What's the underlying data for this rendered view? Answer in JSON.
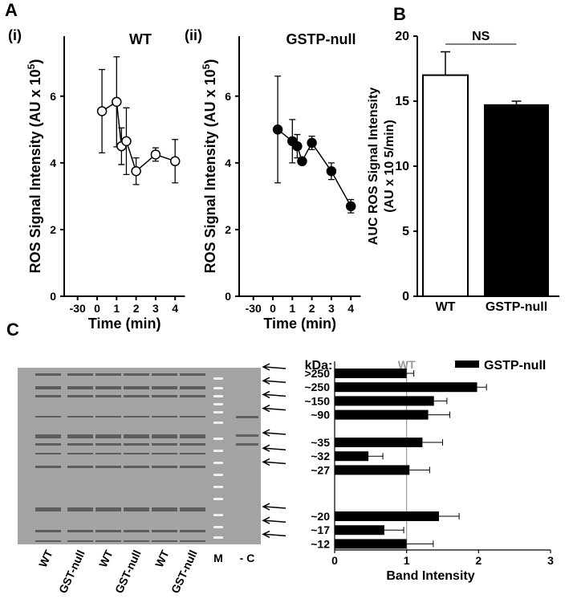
{
  "chart_data": [
    {
      "type": "line",
      "panel": "A",
      "subpanel": "(i)",
      "title": "WT",
      "ylabel": [
        "ROS Signal Intensity (AU x 10",
        "5",
        ")"
      ],
      "xlabel": "Time (min)",
      "x": [
        0.25,
        1,
        1.25,
        1.5,
        2,
        3,
        4
      ],
      "values": [
        5.55,
        5.83,
        4.5,
        4.65,
        3.75,
        4.25,
        4.05
      ],
      "errors": [
        1.25,
        1.35,
        0.55,
        1.0,
        0.4,
        0.2,
        0.65
      ],
      "color": "#000000",
      "marker_fill": "#ffffff",
      "xlim": [
        -30,
        4.5
      ],
      "xticks": [
        -30,
        0,
        1,
        2,
        3,
        4
      ],
      "x_break": true,
      "ylim": [
        0,
        7.8
      ],
      "yticks": [
        0,
        2,
        4,
        6
      ]
    },
    {
      "type": "line",
      "subpanel": "(ii)",
      "title": "GSTP-null",
      "ylabel": [
        "ROS Signal Intensity (AU x 10",
        "5",
        ")"
      ],
      "xlabel": "Time (min)",
      "x": [
        0.25,
        1,
        1.25,
        1.5,
        2,
        3,
        4
      ],
      "values": [
        5.0,
        4.65,
        4.5,
        4.05,
        4.6,
        3.75,
        2.7
      ],
      "errors": [
        1.6,
        0.65,
        0.35,
        0.05,
        0.2,
        0.25,
        0.2
      ],
      "color": "#000000",
      "marker_fill": "#000000",
      "xlim": [
        -30,
        4.5
      ],
      "xticks": [
        -30,
        0,
        1,
        2,
        3,
        4
      ],
      "x_break": true,
      "ylim": [
        0,
        7.8
      ],
      "yticks": [
        0,
        2,
        4,
        6
      ]
    },
    {
      "type": "bar",
      "panel": "B",
      "ylabel": [
        "AUC ROS Signal Intensity",
        "(AU x 10 5/min)"
      ],
      "categories": [
        "WT",
        "GSTP-null"
      ],
      "values": [
        17.0,
        14.7
      ],
      "errors": [
        1.8,
        0.3
      ],
      "colors": [
        "#ffffff",
        "#000000"
      ],
      "annotation": "NS",
      "ylim": [
        0,
        20
      ],
      "yticks": [
        0,
        5,
        10,
        15,
        20
      ]
    },
    {
      "type": "barh",
      "panel": "C",
      "header": "kDa:",
      "lane_labels": [
        "WT",
        "GST-null",
        "WT",
        "GST-null",
        "WT",
        "GST-null",
        "M",
        "- C"
      ],
      "categories": [
        ">250",
        "~250",
        "~150",
        "~90",
        "~35",
        "~32",
        "~27",
        "~20",
        "~17",
        "~12"
      ],
      "series": [
        {
          "name": "GSTP-null",
          "color": "#000000",
          "values": [
            1.0,
            1.98,
            1.38,
            1.3,
            1.22,
            0.47,
            1.04,
            1.45,
            0.69,
            1.0
          ],
          "errors": [
            0.1,
            0.13,
            0.18,
            0.3,
            0.28,
            0.2,
            0.28,
            0.28,
            0.27,
            0.37
          ]
        }
      ],
      "reference": {
        "value": 1,
        "label": "WT",
        "color": "#999999"
      },
      "xlabel": "Band Intensity",
      "xlim": [
        0,
        3
      ],
      "xticks": [
        0,
        1,
        2,
        3
      ]
    }
  ]
}
